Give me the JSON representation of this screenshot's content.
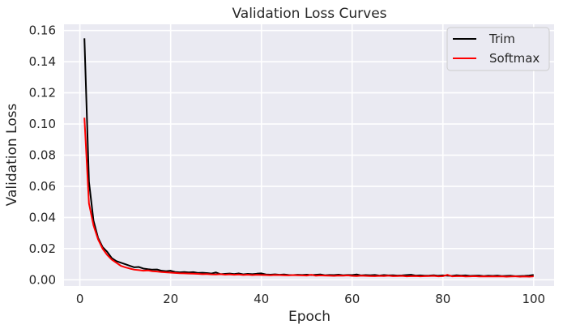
{
  "chart_data": {
    "type": "line",
    "title": "Validation Loss Curves",
    "xlabel": "Epoch",
    "ylabel": "Validation Loss",
    "xlim": [
      -3.5,
      104.5
    ],
    "ylim": [
      -0.004,
      0.164
    ],
    "xticks": [
      0,
      20,
      40,
      60,
      80,
      100
    ],
    "yticks": [
      0.0,
      0.02,
      0.04,
      0.06,
      0.08,
      0.1,
      0.12,
      0.14,
      0.16
    ],
    "ytick_labels": [
      "0.00",
      "0.02",
      "0.04",
      "0.06",
      "0.08",
      "0.10",
      "0.12",
      "0.14",
      "0.16"
    ],
    "grid": true,
    "legend": "top-right",
    "colors": {
      "background": "#eaeaf2",
      "grid": "#ffffff",
      "Trim": "#000000",
      "Softmax": "#ff0000"
    },
    "x": [
      1,
      2,
      3,
      4,
      5,
      6,
      7,
      8,
      9,
      10,
      11,
      12,
      13,
      14,
      15,
      16,
      17,
      18,
      19,
      20,
      21,
      22,
      23,
      24,
      25,
      26,
      27,
      28,
      29,
      30,
      31,
      32,
      33,
      34,
      35,
      36,
      37,
      38,
      39,
      40,
      41,
      42,
      43,
      44,
      45,
      46,
      47,
      48,
      49,
      50,
      51,
      52,
      53,
      54,
      55,
      56,
      57,
      58,
      59,
      60,
      61,
      62,
      63,
      64,
      65,
      66,
      67,
      68,
      69,
      70,
      71,
      72,
      73,
      74,
      75,
      76,
      77,
      78,
      79,
      80,
      81,
      82,
      83,
      84,
      85,
      86,
      87,
      88,
      89,
      90,
      91,
      92,
      93,
      94,
      95,
      96,
      97,
      98,
      99,
      100
    ],
    "series": [
      {
        "name": "Trim",
        "values": [
          0.155,
          0.063,
          0.038,
          0.027,
          0.021,
          0.018,
          0.014,
          0.012,
          0.011,
          0.01,
          0.009,
          0.008,
          0.0082,
          0.0072,
          0.0068,
          0.0065,
          0.0066,
          0.0058,
          0.0055,
          0.0058,
          0.005,
          0.0048,
          0.005,
          0.0047,
          0.0049,
          0.0044,
          0.0045,
          0.0043,
          0.004,
          0.0047,
          0.0036,
          0.0038,
          0.004,
          0.0037,
          0.0041,
          0.0035,
          0.0038,
          0.0036,
          0.0039,
          0.0041,
          0.0034,
          0.0033,
          0.0035,
          0.0032,
          0.0034,
          0.0031,
          0.003,
          0.0032,
          0.0031,
          0.0033,
          0.003,
          0.0032,
          0.0034,
          0.0029,
          0.0031,
          0.003,
          0.0033,
          0.0029,
          0.0031,
          0.003,
          0.0034,
          0.0028,
          0.003,
          0.0029,
          0.0031,
          0.0027,
          0.003,
          0.0028,
          0.0029,
          0.0027,
          0.0028,
          0.003,
          0.0032,
          0.0027,
          0.0028,
          0.0026,
          0.0027,
          0.0029,
          0.0026,
          0.0028,
          0.0026,
          0.0025,
          0.0029,
          0.0027,
          0.0028,
          0.0025,
          0.0026,
          0.0027,
          0.0024,
          0.0026,
          0.0025,
          0.0027,
          0.0024,
          0.0025,
          0.0026,
          0.0023,
          0.0024,
          0.0025,
          0.0027,
          0.0031
        ]
      },
      {
        "name": "Softmax",
        "values": [
          0.104,
          0.049,
          0.035,
          0.026,
          0.02,
          0.016,
          0.013,
          0.011,
          0.009,
          0.008,
          0.0072,
          0.0065,
          0.0062,
          0.0058,
          0.006,
          0.0055,
          0.0053,
          0.005,
          0.0048,
          0.0046,
          0.0044,
          0.0042,
          0.0041,
          0.004,
          0.0039,
          0.0038,
          0.0036,
          0.0037,
          0.0035,
          0.0034,
          0.0036,
          0.0033,
          0.0035,
          0.0032,
          0.0034,
          0.0031,
          0.0033,
          0.003,
          0.0032,
          0.0031,
          0.003,
          0.0029,
          0.0031,
          0.003,
          0.0029,
          0.0028,
          0.003,
          0.0029,
          0.0028,
          0.0027,
          0.0032,
          0.0026,
          0.0028,
          0.0027,
          0.0026,
          0.0025,
          0.0027,
          0.0026,
          0.0028,
          0.0025,
          0.0024,
          0.0026,
          0.0025,
          0.0024,
          0.0023,
          0.0025,
          0.0024,
          0.0026,
          0.0023,
          0.0024,
          0.0025,
          0.0022,
          0.0023,
          0.0024,
          0.0022,
          0.0023,
          0.0024,
          0.0025,
          0.0022,
          0.0023,
          0.0032,
          0.0022,
          0.0023,
          0.0024,
          0.0021,
          0.0022,
          0.0023,
          0.0021,
          0.0022,
          0.0021,
          0.0022,
          0.0021,
          0.0022,
          0.002,
          0.0021,
          0.0022,
          0.002,
          0.0021,
          0.002,
          0.0022
        ]
      }
    ]
  }
}
